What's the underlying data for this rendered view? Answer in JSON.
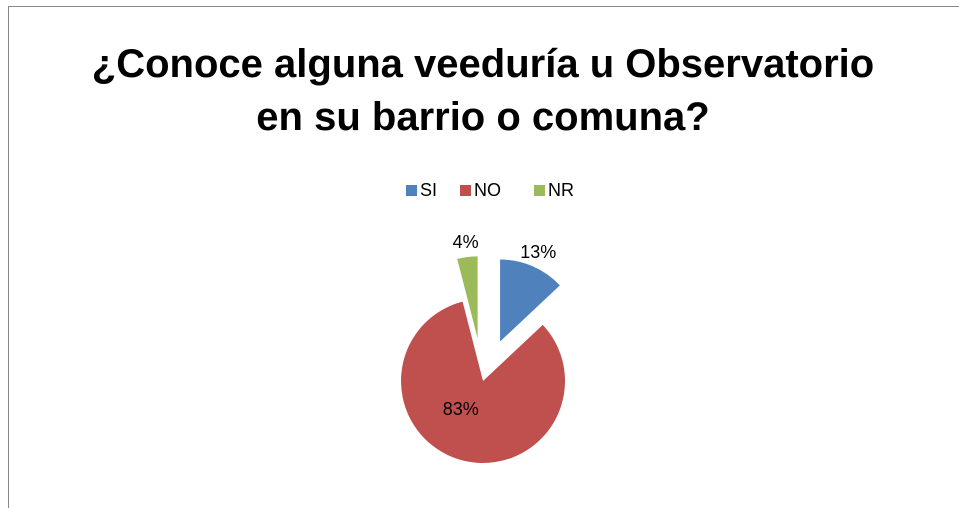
{
  "chart_data": {
    "type": "pie",
    "title": "¿Conoce alguna veeduría u Observatorio en su barrio o comuna?",
    "categories": [
      "SI",
      "NO",
      "NR"
    ],
    "values": [
      13,
      83,
      4
    ],
    "value_labels": [
      "13%",
      "83%",
      "4%"
    ],
    "colors": [
      "#4f81bd",
      "#c0504d",
      "#9bbb59"
    ],
    "legend": "top"
  }
}
